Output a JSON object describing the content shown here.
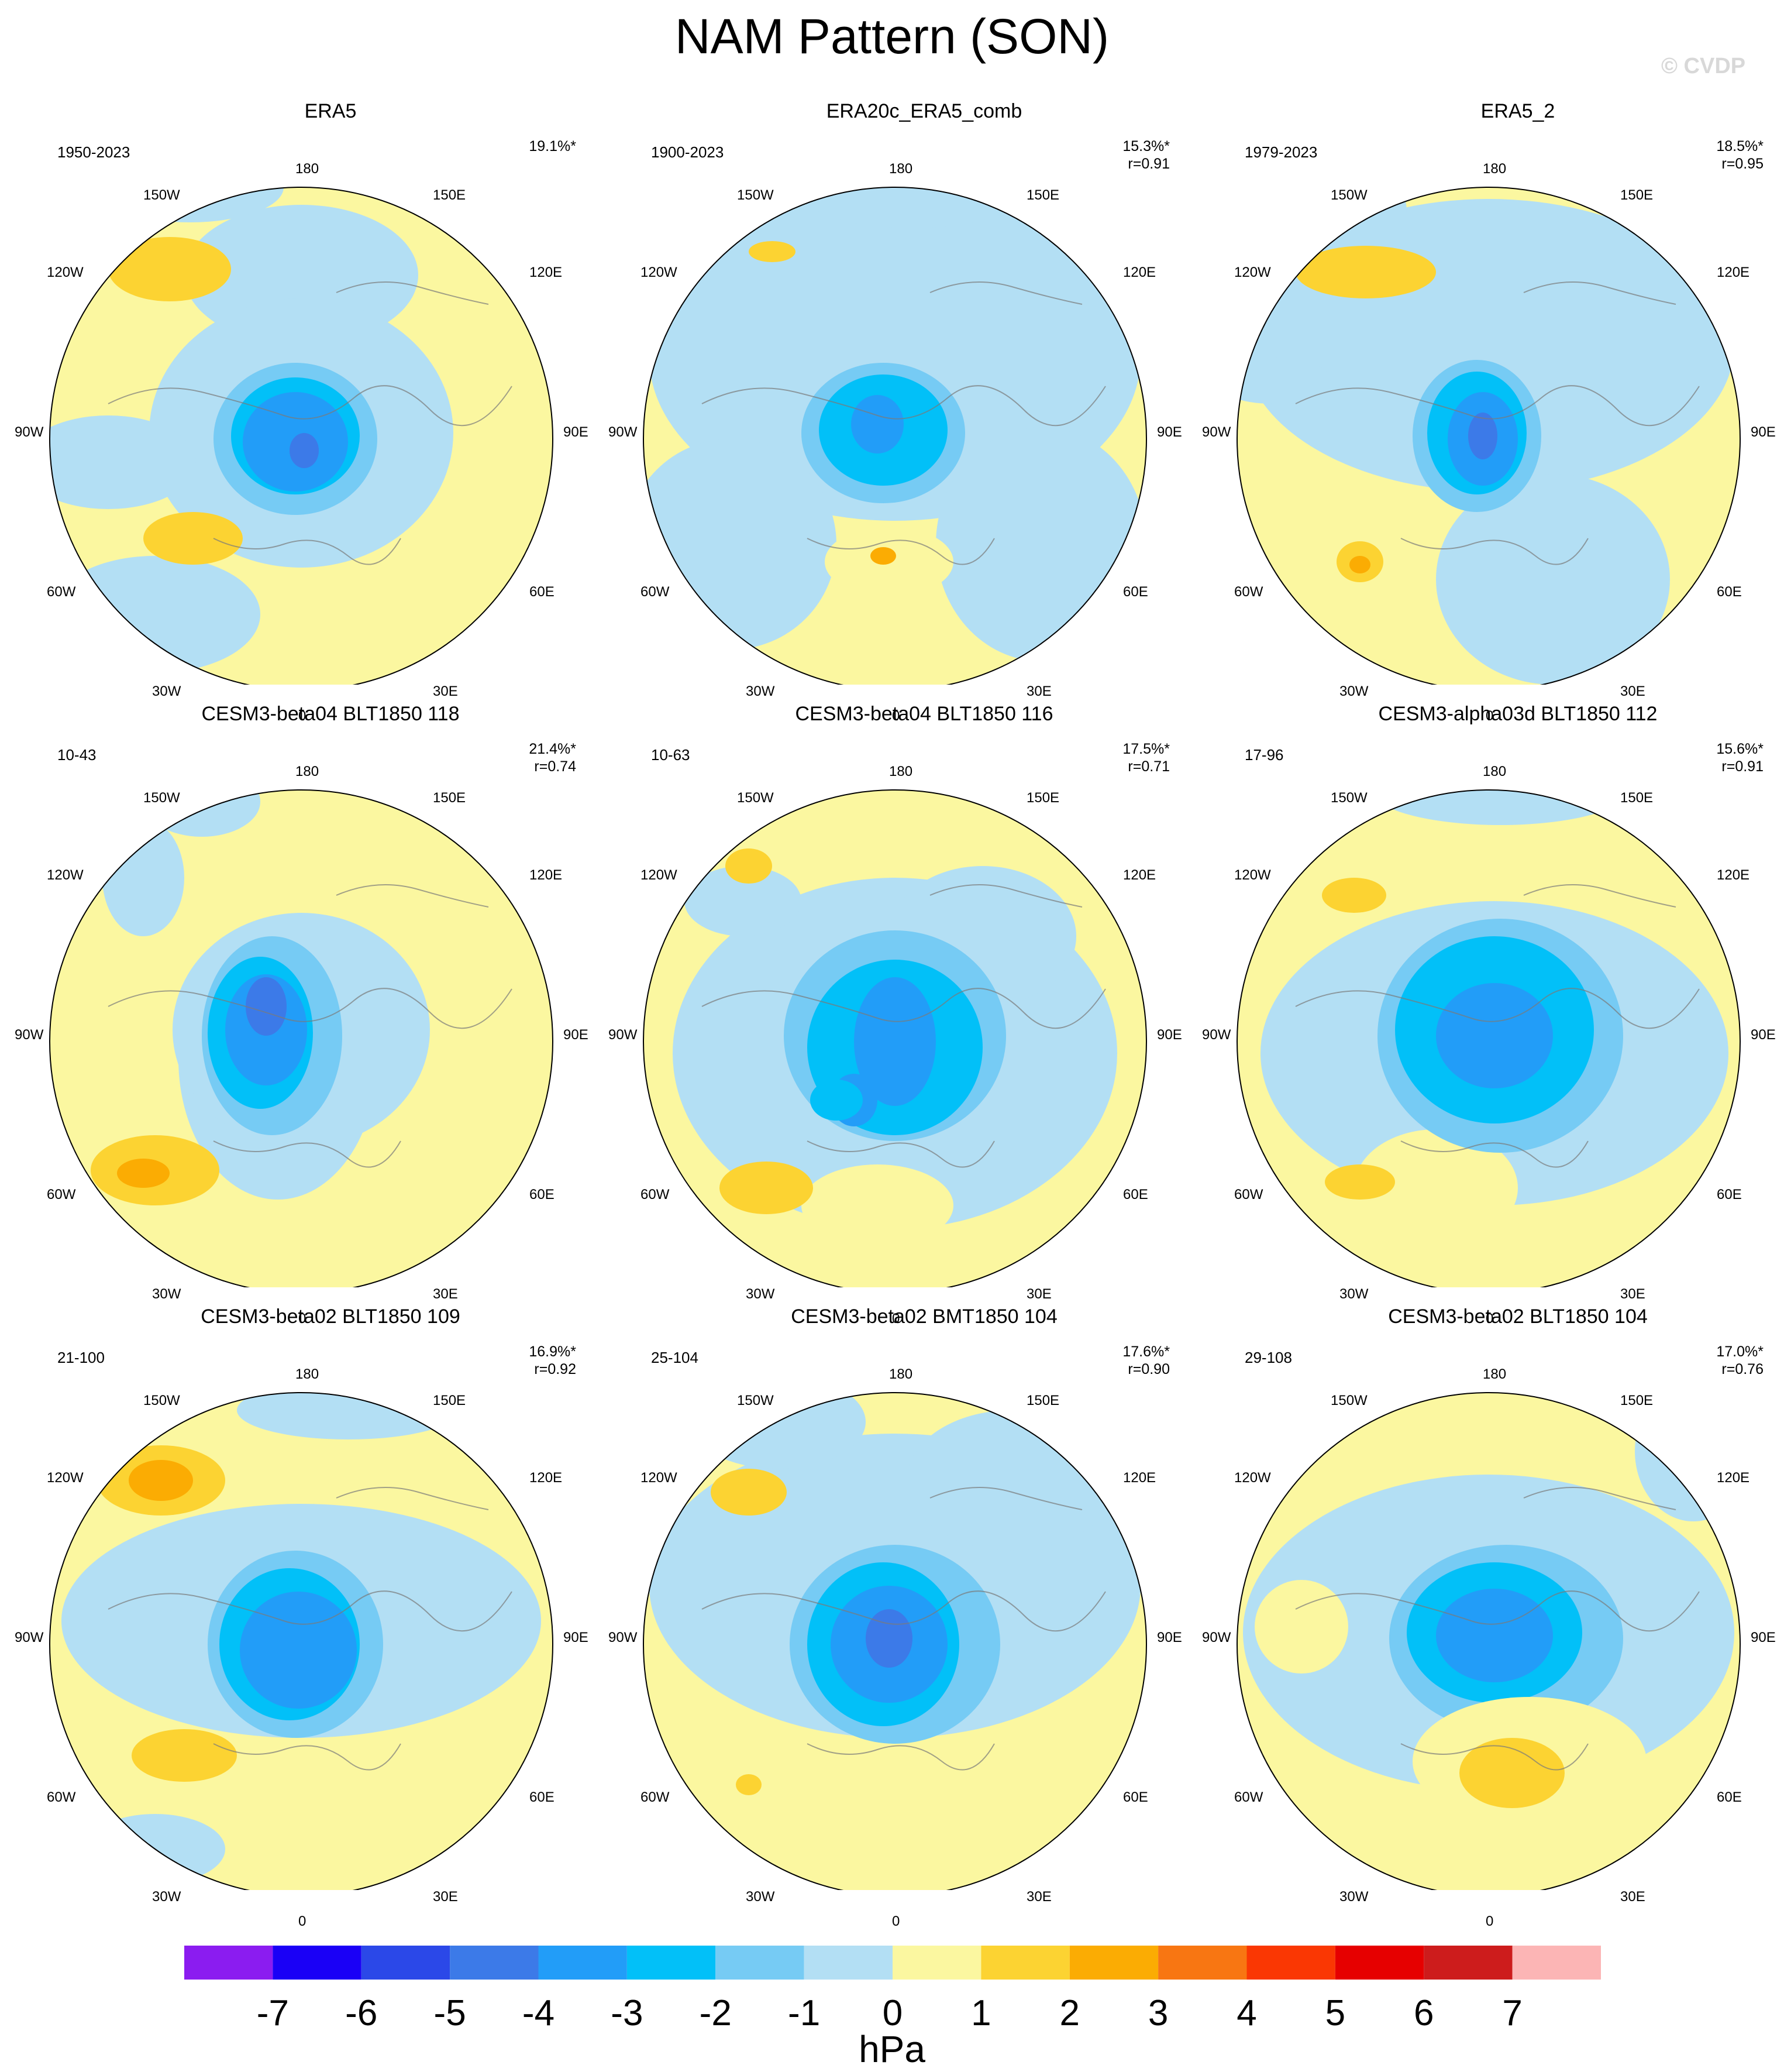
{
  "title": "NAM Pattern (SON)",
  "copyright": "© CVDP",
  "lon_labels": [
    "180",
    "150E",
    "120E",
    "90E",
    "60E",
    "30E",
    "0",
    "30W",
    "60W",
    "90W",
    "120W",
    "150W"
  ],
  "colors": {
    "-7": "#8b1cf0",
    "-6": "#1a00f6",
    "-5": "#2b48e8",
    "-4": "#3c7ae8",
    "-3": "#229df8",
    "-2": "#02c0f8",
    "-1": "#76cbf4",
    "0n": "#b3dff4",
    "0p": "#fbf7a0",
    "1": "#fcd332",
    "2": "#fbac03",
    "3": "#f87612",
    "4": "#fa3703",
    "5": "#e60000",
    "6": "#cd1c1c",
    "7": "#fcb5b5"
  },
  "panels": [
    {
      "title": "ERA5",
      "years": "1950-2023",
      "pct": "19.1%*",
      "r": ""
    },
    {
      "title": "ERA20c_ERA5_comb",
      "years": "1900-2023",
      "pct": "15.3%*",
      "r": "r=0.91"
    },
    {
      "title": "ERA5_2",
      "years": "1979-2023",
      "pct": "18.5%*",
      "r": "r=0.95"
    },
    {
      "title": "CESM3-beta04 BLT1850 118",
      "years": "10-43",
      "pct": "21.4%*",
      "r": "r=0.74"
    },
    {
      "title": "CESM3-beta04 BLT1850 116",
      "years": "10-63",
      "pct": "17.5%*",
      "r": "r=0.71"
    },
    {
      "title": "CESM3-alpha03d BLT1850 112",
      "years": "17-96",
      "pct": "15.6%*",
      "r": "r=0.91"
    },
    {
      "title": "CESM3-beta02 BLT1850 109",
      "years": "21-100",
      "pct": "16.9%*",
      "r": "r=0.92"
    },
    {
      "title": "CESM3-beta02 BMT1850 104",
      "years": "25-104",
      "pct": "17.6%*",
      "r": "r=0.90"
    },
    {
      "title": "CESM3-beta02 BLT1850 104",
      "years": "29-108",
      "pct": "17.0%*",
      "r": "r=0.76"
    }
  ],
  "chart_data": {
    "type": "heatmap",
    "projection": "north polar stereographic",
    "title": "NAM Pattern (SON)",
    "units": "hPa",
    "colorbar": {
      "levels": [
        -7,
        -6,
        -5,
        -4,
        -3,
        -2,
        -1,
        0,
        1,
        2,
        3,
        4,
        5,
        6,
        7
      ],
      "tick_labels": [
        "-7",
        "-6",
        "-5",
        "-4",
        "-3",
        "-2",
        "-1",
        "0",
        "1",
        "2",
        "3",
        "4",
        "5",
        "6",
        "7"
      ],
      "colors": [
        "#8b1cf0",
        "#1a00f6",
        "#2b48e8",
        "#3c7ae8",
        "#229df8",
        "#02c0f8",
        "#76cbf4",
        "#b3dff4",
        "#fbf7a0",
        "#fcd332",
        "#fbac03",
        "#f87612",
        "#fa3703",
        "#e60000",
        "#cd1c1c",
        "#fcb5b5"
      ]
    },
    "panels": [
      {
        "name": "ERA5",
        "years": "1950-2023",
        "variance_explained_pct": 19.1,
        "pattern_corr": null,
        "polar_min_hPa": -4,
        "pacific_max_hPa": 2,
        "atlantic_max_hPa": 2
      },
      {
        "name": "ERA20c_ERA5_comb",
        "years": "1900-2023",
        "variance_explained_pct": 15.3,
        "pattern_corr": 0.91,
        "polar_min_hPa": -3,
        "pacific_max_hPa": 1,
        "atlantic_max_hPa": 2
      },
      {
        "name": "ERA5_2",
        "years": "1979-2023",
        "variance_explained_pct": 18.5,
        "pattern_corr": 0.95,
        "polar_min_hPa": -4,
        "pacific_max_hPa": 2,
        "atlantic_max_hPa": 2
      },
      {
        "name": "CESM3-beta04 BLT1850 118",
        "years": "10-43",
        "variance_explained_pct": 21.4,
        "pattern_corr": 0.74,
        "polar_min_hPa": -4,
        "pacific_max_hPa": 1,
        "atlantic_max_hPa": 3
      },
      {
        "name": "CESM3-beta04 BLT1850 116",
        "years": "10-63",
        "variance_explained_pct": 17.5,
        "pattern_corr": 0.71,
        "polar_min_hPa": -3,
        "pacific_max_hPa": 1,
        "atlantic_max_hPa": 2
      },
      {
        "name": "CESM3-alpha03d BLT1850 112",
        "years": "17-96",
        "variance_explained_pct": 15.6,
        "pattern_corr": 0.91,
        "polar_min_hPa": -3,
        "pacific_max_hPa": 1,
        "atlantic_max_hPa": 2
      },
      {
        "name": "CESM3-beta02 BLT1850 109",
        "years": "21-100",
        "variance_explained_pct": 16.9,
        "pattern_corr": 0.92,
        "polar_min_hPa": -3,
        "pacific_max_hPa": 3,
        "atlantic_max_hPa": 2
      },
      {
        "name": "CESM3-beta02 BMT1850 104",
        "years": "25-104",
        "variance_explained_pct": 17.6,
        "pattern_corr": 0.9,
        "polar_min_hPa": -4,
        "pacific_max_hPa": 2,
        "atlantic_max_hPa": 2
      },
      {
        "name": "CESM3-beta02 BLT1850 104",
        "years": "29-108",
        "variance_explained_pct": 17.0,
        "pattern_corr": 0.76,
        "polar_min_hPa": -3,
        "pacific_max_hPa": 1,
        "atlantic_max_hPa": 2
      }
    ]
  }
}
